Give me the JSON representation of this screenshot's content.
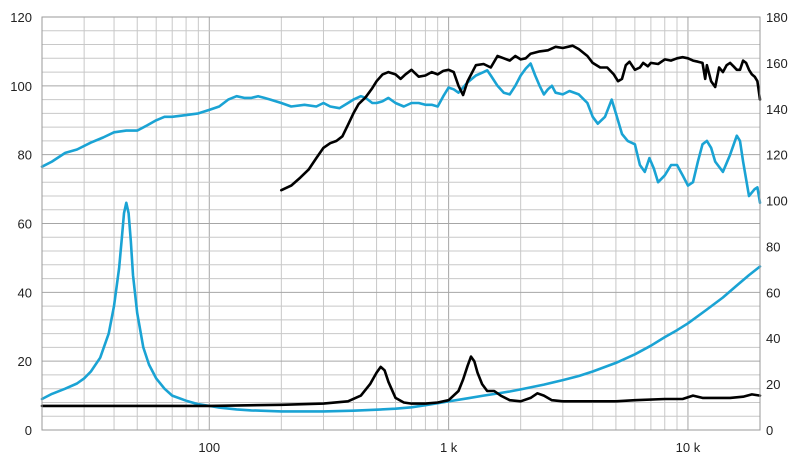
{
  "chart_data": {
    "type": "line",
    "x_scale": "log",
    "xlim": [
      20,
      20000
    ],
    "ylim_left": [
      0,
      120
    ],
    "ylim_right": [
      0,
      180
    ],
    "grid": true,
    "legend": "none",
    "x_ticks": [
      {
        "value": 100,
        "label": "100"
      },
      {
        "value": 1000,
        "label": "1 k"
      },
      {
        "value": 10000,
        "label": "10 k"
      }
    ],
    "y_ticks_left": [
      0,
      20,
      40,
      60,
      80,
      100,
      120
    ],
    "y_ticks_right": [
      0,
      20,
      40,
      60,
      80,
      100,
      120,
      140,
      160,
      180
    ],
    "series": [
      {
        "axis": "left",
        "color": "#1aa3d4",
        "points": [
          [
            20,
            76.5
          ],
          [
            22,
            78
          ],
          [
            25,
            80.5
          ],
          [
            28,
            81.5
          ],
          [
            32,
            83.5
          ],
          [
            36,
            85
          ],
          [
            40,
            86.5
          ],
          [
            45,
            87
          ],
          [
            50,
            87
          ],
          [
            55,
            88.5
          ],
          [
            60,
            90
          ],
          [
            65,
            91
          ],
          [
            70,
            91
          ],
          [
            80,
            91.5
          ],
          [
            90,
            92
          ],
          [
            100,
            93
          ],
          [
            110,
            94
          ],
          [
            120,
            96
          ],
          [
            130,
            97
          ],
          [
            140,
            96.5
          ],
          [
            150,
            96.5
          ],
          [
            160,
            97
          ],
          [
            170,
            96.5
          ],
          [
            180,
            96
          ],
          [
            200,
            95
          ],
          [
            220,
            94
          ],
          [
            250,
            94.5
          ],
          [
            280,
            94
          ],
          [
            300,
            95
          ],
          [
            320,
            94
          ],
          [
            350,
            93.5
          ],
          [
            380,
            95
          ],
          [
            400,
            96
          ],
          [
            430,
            97
          ],
          [
            450,
            96.5
          ],
          [
            480,
            95
          ],
          [
            500,
            95
          ],
          [
            530,
            95.5
          ],
          [
            560,
            96.5
          ],
          [
            600,
            95
          ],
          [
            650,
            94
          ],
          [
            700,
            95
          ],
          [
            750,
            95
          ],
          [
            800,
            94.5
          ],
          [
            850,
            94.5
          ],
          [
            900,
            94
          ],
          [
            950,
            97
          ],
          [
            1000,
            99.5
          ],
          [
            1050,
            99
          ],
          [
            1100,
            98
          ],
          [
            1200,
            101
          ],
          [
            1300,
            103
          ],
          [
            1400,
            104
          ],
          [
            1450,
            104.5
          ],
          [
            1500,
            103
          ],
          [
            1600,
            100
          ],
          [
            1700,
            98
          ],
          [
            1800,
            97.5
          ],
          [
            1900,
            100
          ],
          [
            2000,
            103
          ],
          [
            2100,
            105
          ],
          [
            2200,
            106.5
          ],
          [
            2300,
            103
          ],
          [
            2400,
            100
          ],
          [
            2500,
            97.5
          ],
          [
            2600,
            99
          ],
          [
            2700,
            100
          ],
          [
            2800,
            98
          ],
          [
            3000,
            97.5
          ],
          [
            3200,
            98.5
          ],
          [
            3500,
            97.5
          ],
          [
            3800,
            95
          ],
          [
            4000,
            91
          ],
          [
            4200,
            89
          ],
          [
            4500,
            91
          ],
          [
            4800,
            96
          ],
          [
            5000,
            92
          ],
          [
            5300,
            86
          ],
          [
            5600,
            84
          ],
          [
            6000,
            83
          ],
          [
            6300,
            77
          ],
          [
            6600,
            75
          ],
          [
            6900,
            79
          ],
          [
            7200,
            76
          ],
          [
            7500,
            72
          ],
          [
            8000,
            74
          ],
          [
            8500,
            77
          ],
          [
            9000,
            77
          ],
          [
            9500,
            74
          ],
          [
            10000,
            71
          ],
          [
            10500,
            72
          ],
          [
            11000,
            78
          ],
          [
            11500,
            83
          ],
          [
            12000,
            84
          ],
          [
            12500,
            82
          ],
          [
            13000,
            78
          ],
          [
            14000,
            75
          ],
          [
            15000,
            80
          ],
          [
            16000,
            85.5
          ],
          [
            16500,
            84
          ],
          [
            17000,
            78
          ],
          [
            18000,
            68
          ],
          [
            19000,
            70
          ],
          [
            19500,
            70.5
          ],
          [
            20000,
            66
          ]
        ]
      },
      {
        "axis": "right",
        "color": "#000000",
        "points": [
          [
            200,
            104.5
          ],
          [
            220,
            106.5
          ],
          [
            240,
            110
          ],
          [
            260,
            113.5
          ],
          [
            280,
            118.5
          ],
          [
            300,
            123
          ],
          [
            320,
            125
          ],
          [
            340,
            126
          ],
          [
            360,
            128
          ],
          [
            380,
            133
          ],
          [
            400,
            138
          ],
          [
            420,
            142
          ],
          [
            450,
            145
          ],
          [
            480,
            149
          ],
          [
            500,
            152
          ],
          [
            530,
            155
          ],
          [
            560,
            156
          ],
          [
            600,
            155
          ],
          [
            630,
            153
          ],
          [
            660,
            155
          ],
          [
            700,
            157
          ],
          [
            750,
            154
          ],
          [
            800,
            154.5
          ],
          [
            850,
            156
          ],
          [
            900,
            155
          ],
          [
            950,
            156.5
          ],
          [
            1000,
            157
          ],
          [
            1050,
            156
          ],
          [
            1100,
            150
          ],
          [
            1150,
            146
          ],
          [
            1200,
            152
          ],
          [
            1300,
            159
          ],
          [
            1400,
            159.5
          ],
          [
            1500,
            158
          ],
          [
            1600,
            163
          ],
          [
            1700,
            162
          ],
          [
            1800,
            161
          ],
          [
            1900,
            163
          ],
          [
            2000,
            161.5
          ],
          [
            2100,
            162
          ],
          [
            2200,
            164
          ],
          [
            2400,
            165
          ],
          [
            2600,
            165.5
          ],
          [
            2800,
            167
          ],
          [
            3000,
            166.5
          ],
          [
            3300,
            167.5
          ],
          [
            3500,
            166
          ],
          [
            3800,
            163
          ],
          [
            4000,
            160
          ],
          [
            4300,
            158
          ],
          [
            4600,
            158
          ],
          [
            4900,
            155
          ],
          [
            5100,
            152
          ],
          [
            5300,
            153
          ],
          [
            5500,
            159
          ],
          [
            5700,
            160.5
          ],
          [
            6000,
            157
          ],
          [
            6300,
            158
          ],
          [
            6500,
            160
          ],
          [
            6800,
            158.5
          ],
          [
            7000,
            160
          ],
          [
            7500,
            159.5
          ],
          [
            8000,
            161.5
          ],
          [
            8500,
            161
          ],
          [
            9000,
            162
          ],
          [
            9500,
            162.5
          ],
          [
            10000,
            162
          ],
          [
            10500,
            161
          ],
          [
            11000,
            160.5
          ],
          [
            11500,
            160
          ],
          [
            11800,
            153
          ],
          [
            12000,
            159
          ],
          [
            12500,
            152
          ],
          [
            13000,
            149.5
          ],
          [
            13500,
            158
          ],
          [
            14000,
            156
          ],
          [
            14500,
            159
          ],
          [
            15000,
            160
          ],
          [
            15500,
            158.5
          ],
          [
            16000,
            157
          ],
          [
            16500,
            157
          ],
          [
            17000,
            161
          ],
          [
            17500,
            160
          ],
          [
            18000,
            157
          ],
          [
            18500,
            155
          ],
          [
            19000,
            154
          ],
          [
            19500,
            152
          ],
          [
            20000,
            144
          ]
        ]
      },
      {
        "axis": "left",
        "color": "#1aa3d4",
        "points": [
          [
            20,
            9
          ],
          [
            22,
            10.5
          ],
          [
            25,
            12
          ],
          [
            28,
            13.5
          ],
          [
            30,
            15
          ],
          [
            32,
            17
          ],
          [
            35,
            21
          ],
          [
            38,
            28
          ],
          [
            40,
            36
          ],
          [
            42,
            47
          ],
          [
            43,
            55
          ],
          [
            44,
            63
          ],
          [
            45,
            66
          ],
          [
            46,
            63
          ],
          [
            47,
            55
          ],
          [
            48,
            45
          ],
          [
            50,
            34
          ],
          [
            53,
            24
          ],
          [
            56,
            19
          ],
          [
            60,
            15
          ],
          [
            65,
            12
          ],
          [
            70,
            10
          ],
          [
            80,
            8.5
          ],
          [
            90,
            7.5
          ],
          [
            100,
            7
          ],
          [
            110,
            6.5
          ],
          [
            130,
            6
          ],
          [
            150,
            5.7
          ],
          [
            200,
            5.4
          ],
          [
            300,
            5.4
          ],
          [
            400,
            5.6
          ],
          [
            500,
            5.9
          ],
          [
            600,
            6.2
          ],
          [
            700,
            6.6
          ],
          [
            800,
            7.2
          ],
          [
            900,
            7.8
          ],
          [
            1000,
            8.3
          ],
          [
            1200,
            9.2
          ],
          [
            1400,
            10
          ],
          [
            1600,
            10.6
          ],
          [
            1800,
            11.2
          ],
          [
            2000,
            11.8
          ],
          [
            2500,
            13.2
          ],
          [
            3000,
            14.5
          ],
          [
            3500,
            15.7
          ],
          [
            4000,
            17
          ],
          [
            5000,
            19.5
          ],
          [
            6000,
            22
          ],
          [
            7000,
            24.5
          ],
          [
            8000,
            27
          ],
          [
            9000,
            29
          ],
          [
            10000,
            31
          ],
          [
            12000,
            35
          ],
          [
            14000,
            38.5
          ],
          [
            16000,
            42
          ],
          [
            18000,
            45
          ],
          [
            20000,
            47.5
          ]
        ]
      },
      {
        "axis": "right",
        "color": "#000000",
        "points": [
          [
            20,
            10.5
          ],
          [
            50,
            10.5
          ],
          [
            100,
            10.5
          ],
          [
            200,
            11
          ],
          [
            300,
            11.5
          ],
          [
            380,
            12.5
          ],
          [
            430,
            15
          ],
          [
            470,
            20
          ],
          [
            500,
            25
          ],
          [
            520,
            27.5
          ],
          [
            540,
            26
          ],
          [
            560,
            21
          ],
          [
            600,
            14
          ],
          [
            650,
            12
          ],
          [
            700,
            11.5
          ],
          [
            800,
            11.5
          ],
          [
            900,
            12
          ],
          [
            1000,
            13
          ],
          [
            1100,
            17
          ],
          [
            1150,
            22
          ],
          [
            1200,
            28
          ],
          [
            1240,
            32
          ],
          [
            1280,
            30
          ],
          [
            1320,
            25
          ],
          [
            1380,
            20
          ],
          [
            1450,
            17
          ],
          [
            1550,
            17
          ],
          [
            1650,
            15
          ],
          [
            1800,
            13
          ],
          [
            2000,
            12.5
          ],
          [
            2200,
            14
          ],
          [
            2350,
            16
          ],
          [
            2500,
            15
          ],
          [
            2700,
            13
          ],
          [
            3000,
            12.5
          ],
          [
            4000,
            12.5
          ],
          [
            5000,
            12.5
          ],
          [
            6000,
            13
          ],
          [
            8000,
            13.5
          ],
          [
            9500,
            13.5
          ],
          [
            10500,
            15
          ],
          [
            11500,
            14
          ],
          [
            13000,
            14
          ],
          [
            15000,
            14
          ],
          [
            17000,
            14.5
          ],
          [
            18500,
            15.5
          ],
          [
            20000,
            15
          ]
        ]
      }
    ]
  }
}
